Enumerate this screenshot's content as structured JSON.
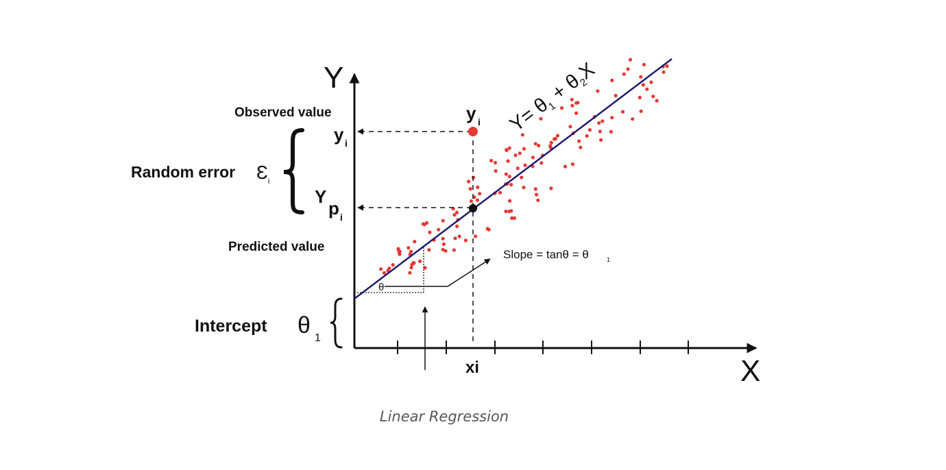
{
  "axes": {
    "x_label": "X",
    "y_label": "Y"
  },
  "annotations": {
    "observed_value": "Observed value",
    "predicted_value": "Predicted value",
    "random_error": "Random error",
    "random_error_symbol": "Ɛ",
    "random_error_sub": "i",
    "intercept": "Intercept",
    "theta": "θ",
    "sub_1": "1",
    "sub_i": "i",
    "sub_2": "2",
    "y": "y",
    "Y": "Y",
    "p": "p",
    "xi": "xi",
    "slope_text": "Slope = tanθ = θ",
    "eq_a": "Y= θ",
    "eq_b": " + θ",
    "eq_c": "X"
  },
  "caption": "Linear Regression",
  "colors": {
    "line": "#1e1b6e",
    "points": "#e53935",
    "text": "#111111",
    "caption": "#555555"
  }
}
